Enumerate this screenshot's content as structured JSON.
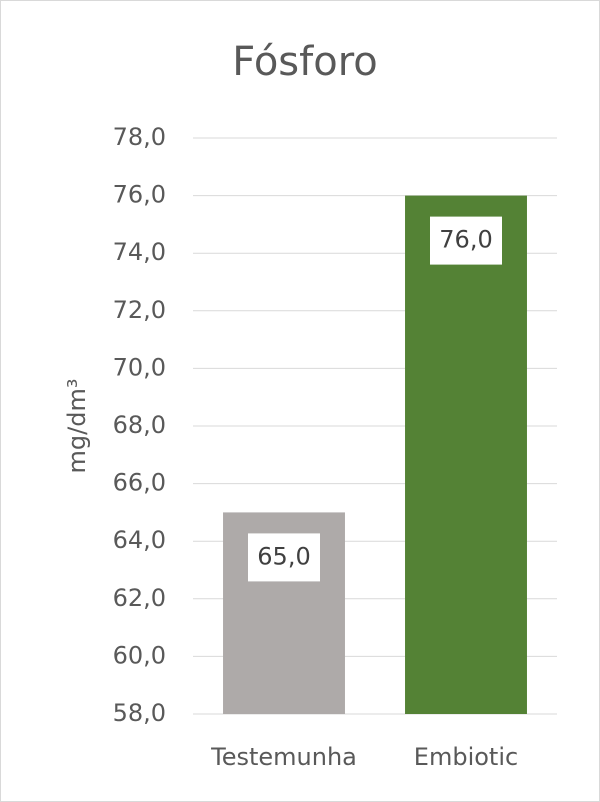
{
  "chart_data": {
    "type": "bar",
    "title": "Fósforo",
    "y_label": "mg/dm³",
    "categories": [
      "Testemunha",
      "Embiotic"
    ],
    "values": [
      65,
      76
    ],
    "value_labels": [
      "65,0",
      "76,0"
    ],
    "colors": [
      "#aeaaa9",
      "#548235"
    ],
    "ylim": [
      58,
      78
    ],
    "yticks": [
      {
        "value": 58,
        "label": "58,0"
      },
      {
        "value": 60,
        "label": "60,0"
      },
      {
        "value": 62,
        "label": "62,0"
      },
      {
        "value": 64,
        "label": "64,0"
      },
      {
        "value": 66,
        "label": "66,0"
      },
      {
        "value": 68,
        "label": "68,0"
      },
      {
        "value": 70,
        "label": "70,0"
      },
      {
        "value": 72,
        "label": "72,0"
      },
      {
        "value": 74,
        "label": "74,0"
      },
      {
        "value": 76,
        "label": "76,0"
      },
      {
        "value": 78,
        "label": "78,0"
      }
    ],
    "grid": true
  }
}
